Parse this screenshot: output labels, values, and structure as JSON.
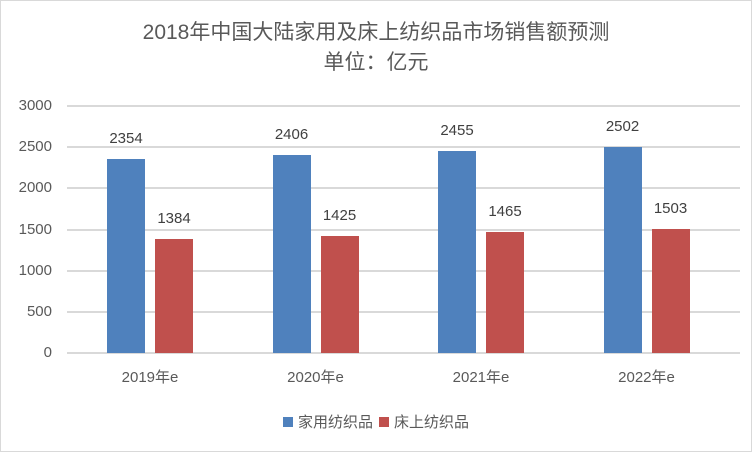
{
  "chart_data": {
    "type": "bar",
    "title": "2018年中国大陆家用及床上纺织品市场销售额预测",
    "subtitle": "单位：亿元",
    "categories": [
      "2019年e",
      "2020年e",
      "2021年e",
      "2022年e"
    ],
    "series": [
      {
        "name": "家用纺织品",
        "color": "#4f81bd",
        "values": [
          2354,
          2406,
          2455,
          2502
        ]
      },
      {
        "name": "床上纺织品",
        "color": "#c0504d",
        "values": [
          1384,
          1425,
          1465,
          1503
        ]
      }
    ],
    "xlabel": "",
    "ylabel": "",
    "ylim": [
      0,
      3000
    ],
    "yticks": [
      "3000",
      "2500",
      "2000",
      "1500",
      "1000",
      "500",
      "0"
    ],
    "grid": true,
    "legend_position": "bottom",
    "data_labels": true
  },
  "labels": {
    "s0": [
      "2354",
      "2406",
      "2455",
      "2502"
    ],
    "s1": [
      "1384",
      "1425",
      "1465",
      "1503"
    ]
  }
}
